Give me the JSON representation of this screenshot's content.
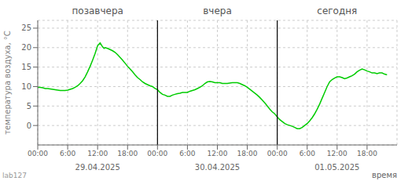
{
  "chart_data": {
    "type": "line",
    "ylabel": "температура воздуха, °С",
    "xlabel": "время",
    "watermark": "lab127",
    "color": "#00cc00",
    "grid": true,
    "xlim": [
      0,
      72
    ],
    "xticks": [
      {
        "value": 0,
        "label": "00:00"
      },
      {
        "value": 6,
        "label": "6:00"
      },
      {
        "value": 12,
        "label": "12:00"
      },
      {
        "value": 18,
        "label": "18:00"
      },
      {
        "value": 24,
        "label": "00:00"
      },
      {
        "value": 30,
        "label": "6:00"
      },
      {
        "value": 36,
        "label": "12:00"
      },
      {
        "value": 42,
        "label": "18:00"
      },
      {
        "value": 48,
        "label": "00:00"
      },
      {
        "value": 54,
        "label": "6:00"
      },
      {
        "value": 60,
        "label": "12:00"
      },
      {
        "value": 66,
        "label": "18:00"
      }
    ],
    "ylim": [
      -5,
      27
    ],
    "yticks": [
      0,
      5,
      10,
      15,
      20,
      25
    ],
    "vlines": [
      {
        "x": 24,
        "color": "#000000"
      },
      {
        "x": 48,
        "color": "#000000"
      }
    ],
    "day_labels": [
      {
        "x": 12,
        "text": "позавчера",
        "date": "29.04.2025"
      },
      {
        "x": 36,
        "text": "вчера",
        "date": "30.04.2025"
      },
      {
        "x": 60,
        "text": "сегодня",
        "date": "01.05.2025"
      }
    ],
    "x": [
      0,
      0.5,
      1,
      1.5,
      2,
      2.5,
      3,
      3.5,
      4,
      4.5,
      5,
      5.5,
      6,
      6.5,
      7,
      7.5,
      8,
      8.5,
      9,
      9.5,
      10,
      10.5,
      11,
      11.5,
      12,
      12.5,
      13,
      13.3,
      13.5,
      14,
      14.5,
      15,
      15.5,
      16,
      16.5,
      17,
      17.5,
      18,
      18.5,
      19,
      19.5,
      20,
      20.5,
      21,
      21.5,
      22,
      22.5,
      23,
      23.5,
      24,
      24.5,
      25,
      25.5,
      26,
      26.5,
      27,
      27.5,
      28,
      28.5,
      29,
      29.5,
      30,
      30.5,
      31,
      31.5,
      32,
      32.5,
      33,
      33.5,
      34,
      34.5,
      35,
      35.5,
      36,
      36.5,
      37,
      37.5,
      38,
      38.5,
      39,
      39.5,
      40,
      40.5,
      41,
      41.5,
      42,
      42.5,
      43,
      43.5,
      44,
      44.5,
      45,
      45.5,
      46,
      46.5,
      47,
      47.5,
      48,
      48.5,
      49,
      49.5,
      50,
      50.5,
      51,
      51.5,
      52,
      52.5,
      53,
      53.5,
      54,
      54.5,
      55,
      55.5,
      56,
      56.5,
      57,
      57.5,
      58,
      58.5,
      59,
      59.5,
      60,
      60.5,
      61,
      61.5,
      62,
      62.5,
      63,
      63.5,
      64,
      64.5,
      65,
      65.5,
      66,
      66.5,
      67,
      67.5,
      68,
      68.5,
      69,
      69.5,
      70
    ],
    "values": [
      9.8,
      9.8,
      9.7,
      9.5,
      9.5,
      9.4,
      9.3,
      9.2,
      9.1,
      9.0,
      9.0,
      9.0,
      9.1,
      9.3,
      9.5,
      9.8,
      10.2,
      10.8,
      11.5,
      12.5,
      13.8,
      15.2,
      16.8,
      18.5,
      20.5,
      21.2,
      20.2,
      19.8,
      20.0,
      19.8,
      19.5,
      19.2,
      18.8,
      18.2,
      17.5,
      16.8,
      16.0,
      15.2,
      14.5,
      13.8,
      13.0,
      12.3,
      11.8,
      11.2,
      10.8,
      10.5,
      10.2,
      10.0,
      9.5,
      9.2,
      8.5,
      8.0,
      7.8,
      7.5,
      7.5,
      7.8,
      8.0,
      8.2,
      8.3,
      8.5,
      8.5,
      8.5,
      8.8,
      9.0,
      9.2,
      9.5,
      9.8,
      10.2,
      10.8,
      11.2,
      11.3,
      11.2,
      11.0,
      11.0,
      11.0,
      10.8,
      10.8,
      10.8,
      10.9,
      11.0,
      11.0,
      11.0,
      10.8,
      10.5,
      10.2,
      9.8,
      9.3,
      8.8,
      8.3,
      7.8,
      7.2,
      6.5,
      5.8,
      5.0,
      4.2,
      3.5,
      3.0,
      2.2,
      1.5,
      1.0,
      0.5,
      0.2,
      0.0,
      -0.2,
      -0.5,
      -0.8,
      -0.8,
      -0.5,
      0.0,
      0.5,
      1.2,
      2.0,
      3.0,
      4.2,
      5.5,
      7.0,
      8.5,
      10.0,
      11.2,
      11.8,
      12.2,
      12.5,
      12.5,
      12.3,
      12.0,
      12.2,
      12.5,
      12.8,
      13.2,
      13.8,
      14.2,
      14.5,
      14.3,
      14.0,
      13.8,
      13.5,
      13.5,
      13.3,
      13.5,
      13.5,
      13.2,
      13.0
    ]
  }
}
